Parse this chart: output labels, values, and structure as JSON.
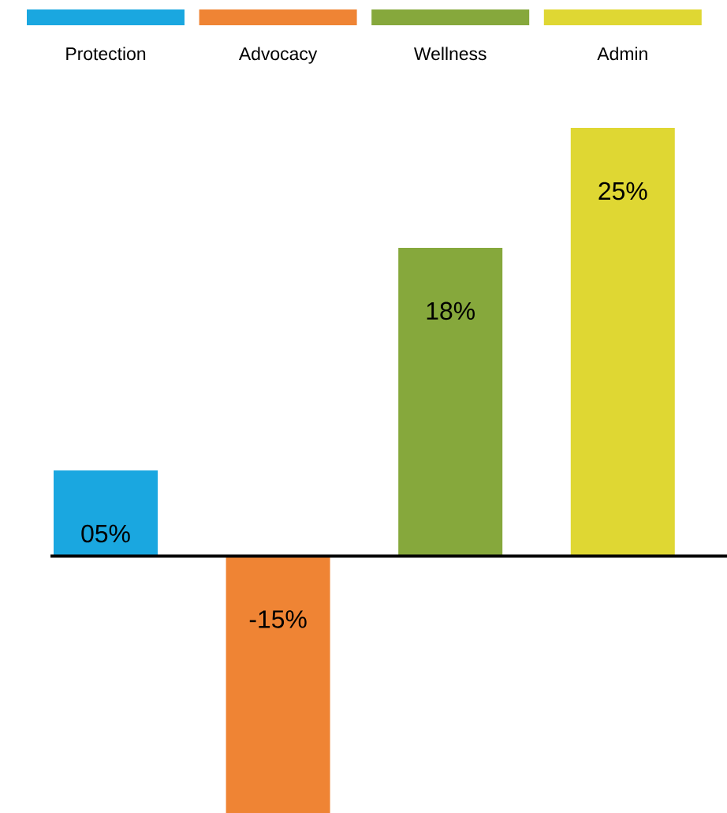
{
  "chart_data": {
    "type": "bar",
    "categories": [
      "Protection",
      "Advocacy",
      "Wellness",
      "Admin"
    ],
    "values": [
      5,
      -15,
      18,
      25
    ],
    "colors": [
      "#1aa7e0",
      "#ef8434",
      "#86a83c",
      "#dfd733"
    ],
    "value_labels": [
      "05%",
      "-15%",
      "18%",
      "25%"
    ]
  }
}
